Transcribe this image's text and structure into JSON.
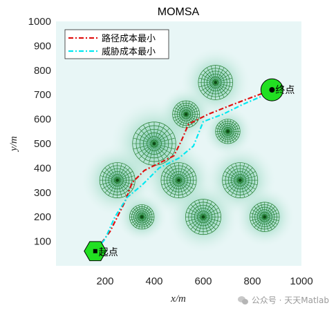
{
  "chart_data": {
    "type": "line",
    "title": "MOMSA",
    "xlabel": "x/m",
    "ylabel": "y/m",
    "xlim": [
      0,
      1000
    ],
    "ylim": [
      0,
      1000
    ],
    "xticks": [
      "200",
      "400",
      "600",
      "800",
      "1000"
    ],
    "yticks": [
      "100",
      "200",
      "300",
      "400",
      "500",
      "600",
      "700",
      "800",
      "900",
      "1000"
    ],
    "legend_position": "top-left",
    "series": [
      {
        "name": "路径成本最小",
        "color": "#e01010",
        "style": "dash-dot",
        "x": [
          160,
          220,
          280,
          310,
          360,
          420,
          480,
          510,
          540,
          620,
          720,
          800,
          880
        ],
        "y": [
          60,
          140,
          260,
          340,
          390,
          420,
          450,
          510,
          580,
          620,
          660,
          690,
          720
        ]
      },
      {
        "name": "威胁成本最小",
        "color": "#00e8f0",
        "style": "dash-dot",
        "x": [
          160,
          200,
          240,
          290,
          350,
          420,
          500,
          560,
          600,
          680,
          760,
          830,
          880
        ],
        "y": [
          60,
          110,
          200,
          280,
          330,
          400,
          440,
          490,
          590,
          620,
          660,
          690,
          720
        ]
      }
    ],
    "threats": [
      {
        "x": 650,
        "y": 750,
        "r": 70
      },
      {
        "x": 530,
        "y": 620,
        "r": 55
      },
      {
        "x": 400,
        "y": 500,
        "r": 88
      },
      {
        "x": 700,
        "y": 550,
        "r": 50
      },
      {
        "x": 250,
        "y": 350,
        "r": 72
      },
      {
        "x": 500,
        "y": 350,
        "r": 72
      },
      {
        "x": 750,
        "y": 350,
        "r": 72
      },
      {
        "x": 350,
        "y": 200,
        "r": 50
      },
      {
        "x": 600,
        "y": 200,
        "r": 72
      },
      {
        "x": 850,
        "y": 200,
        "r": 60
      }
    ],
    "start": {
      "x": 160,
      "y": 60,
      "label": "起点"
    },
    "goal": {
      "x": 880,
      "y": 720,
      "label": "终点"
    }
  },
  "watermark": {
    "text": "公众号 · 天天Matlab"
  }
}
